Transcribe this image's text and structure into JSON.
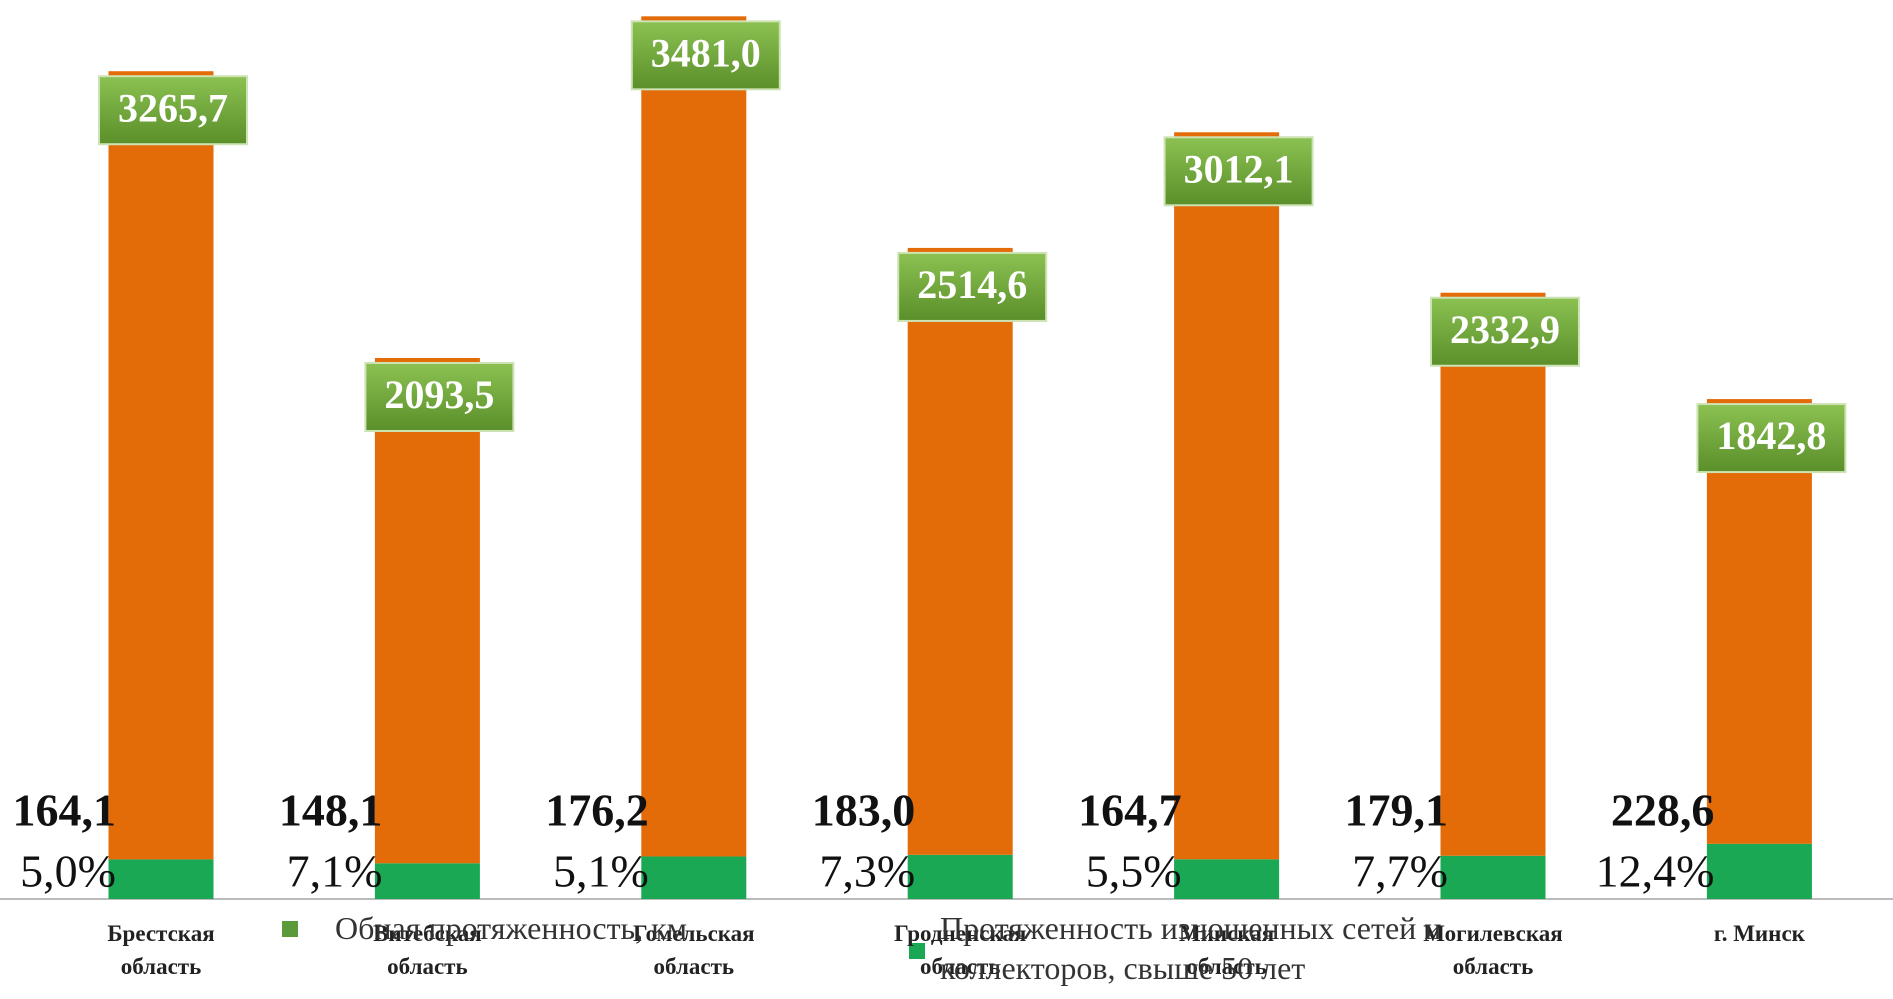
{
  "chart_data": {
    "type": "stacked-bar",
    "categories": [
      "Брестская область",
      "Витебская область",
      "Гомельская область",
      "Гродненская область",
      "Минская область",
      "Могилевская область",
      "г. Минск"
    ],
    "series": [
      {
        "name": "Обная протяженность, км",
        "color": "#e36c09",
        "legend_color": "#5b9a3a",
        "values": [
          3265.7,
          2093.5,
          3481.0,
          2514.6,
          3012.1,
          2332.9,
          1842.8
        ],
        "value_labels": [
          "3265,7",
          "2093,5",
          "3481,0",
          "2514,6",
          "3012,1",
          "2332,9",
          "1842,8"
        ]
      },
      {
        "name": "Протяженность изношенных сетей и коллекторов, свыше 50 лет",
        "color": "#1aa854",
        "legend_color": "#1aa854",
        "values": [
          164.1,
          148.1,
          176.2,
          183.0,
          164.7,
          179.1,
          228.6
        ],
        "value_labels": [
          "164,1",
          "148,1",
          "176,2",
          "183,0",
          "164,7",
          "179,1",
          "228,6"
        ],
        "shares": [
          5.0,
          7.1,
          5.1,
          7.3,
          5.5,
          7.7,
          12.4
        ],
        "share_labels": [
          "5,0%",
          "7,1%",
          "5,1%",
          "7,3%",
          "5,5%",
          "7,7%",
          "12,4%"
        ]
      }
    ],
    "ylim": [
      0,
      3700
    ]
  }
}
